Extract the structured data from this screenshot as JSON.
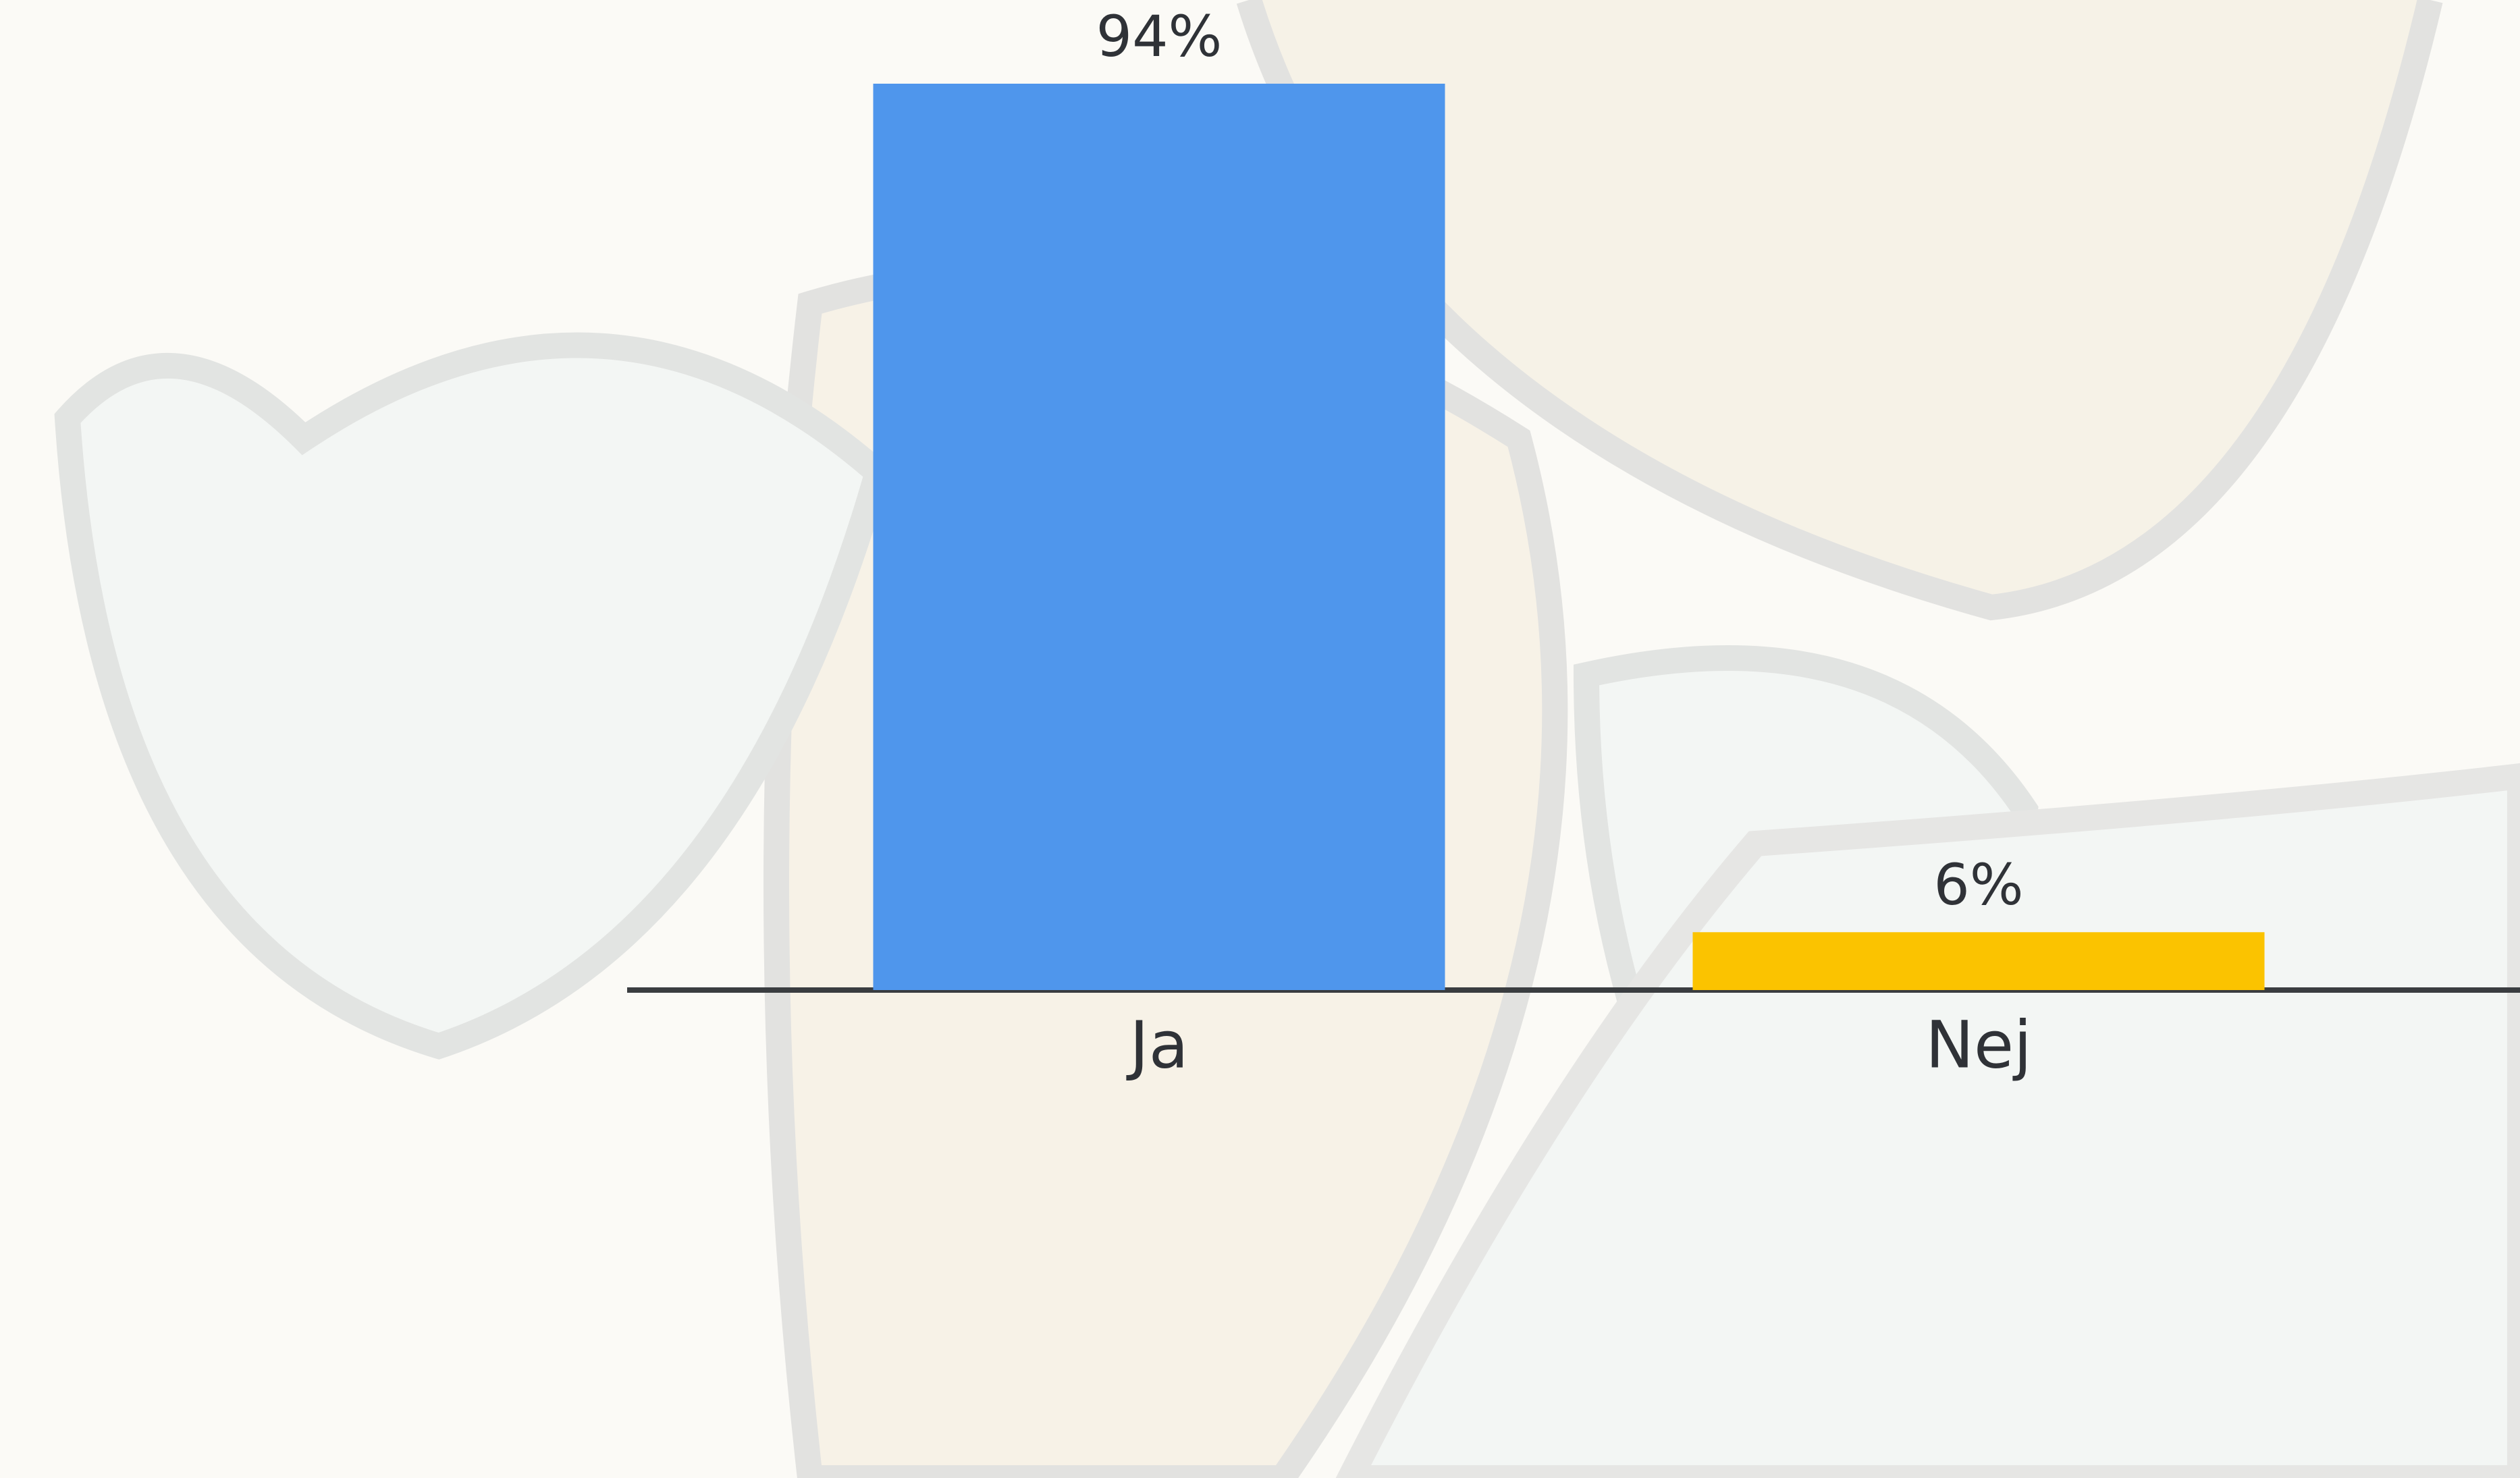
{
  "chart_data": {
    "type": "bar",
    "categories": [
      "Ja",
      "Nej"
    ],
    "values": [
      94,
      6
    ],
    "value_labels": [
      "94%",
      "6%"
    ],
    "colors": [
      "#4f96ec",
      "#fbc300"
    ]
  }
}
